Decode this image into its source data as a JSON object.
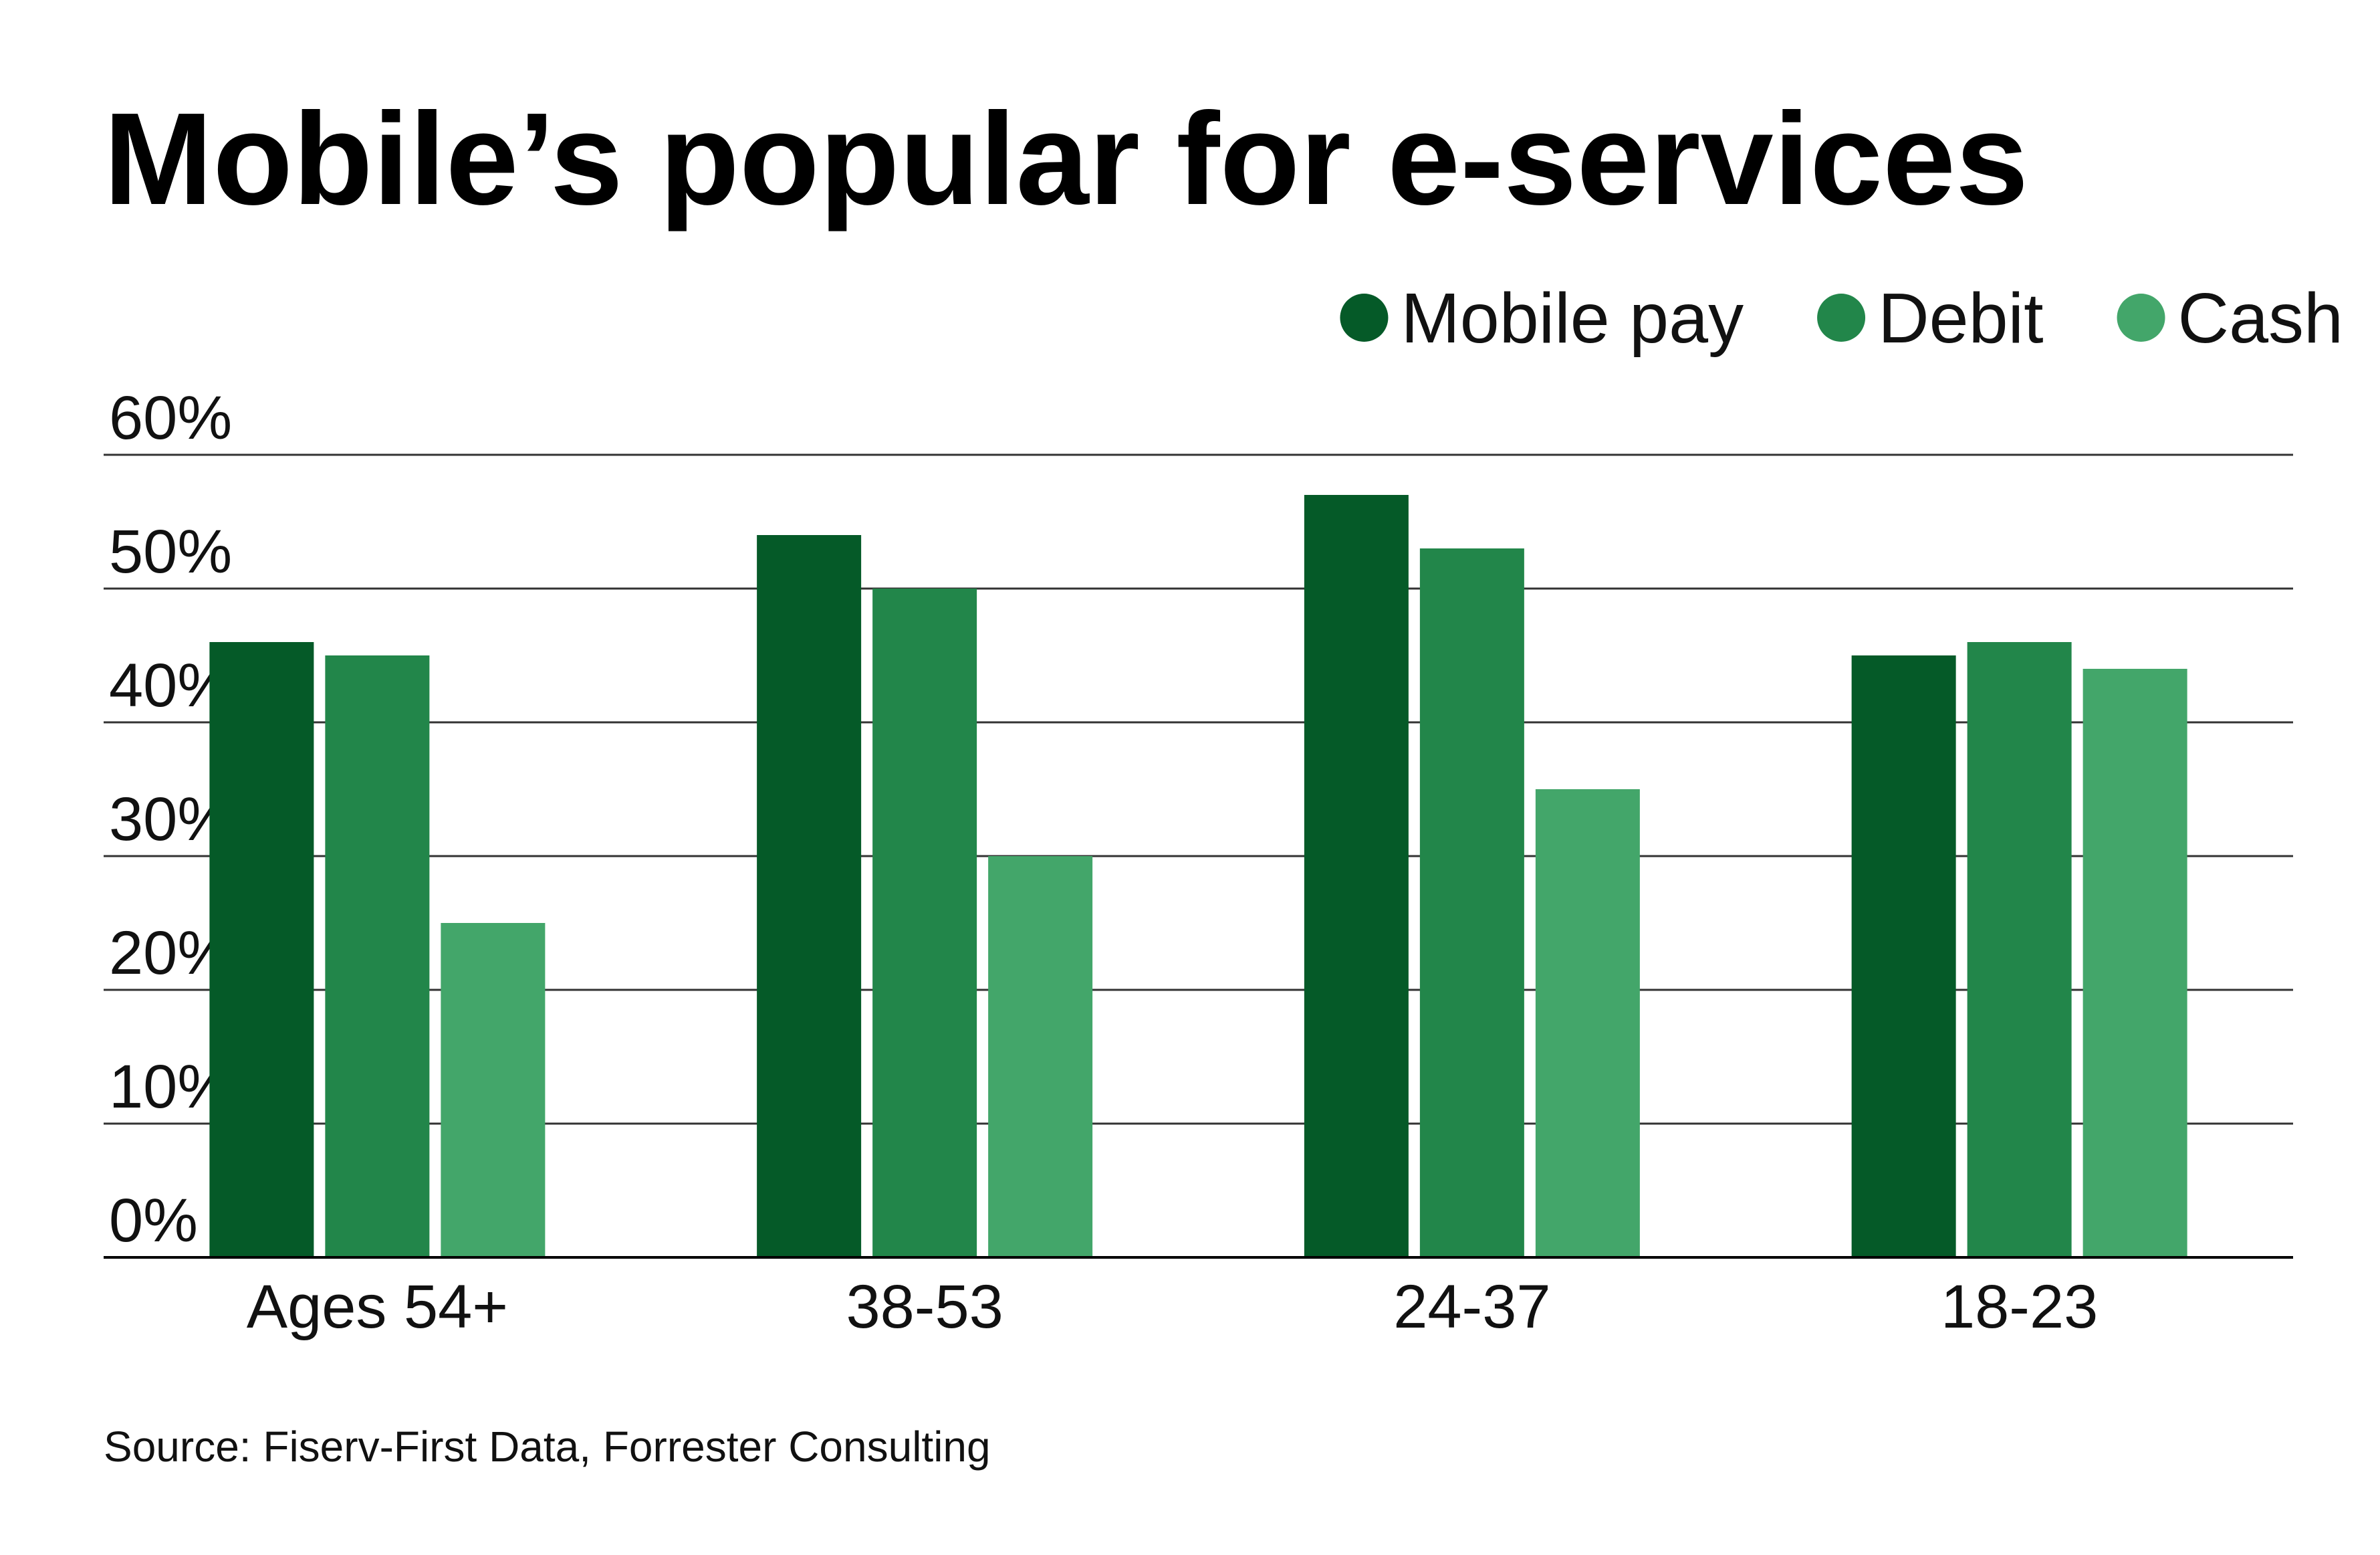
{
  "chart_data": {
    "type": "bar",
    "title": "Mobile’s popular for e-services",
    "categories": [
      "Ages 54+",
      "38-53",
      "24-37",
      "18-23"
    ],
    "series": [
      {
        "name": "Mobile pay",
        "color": "#055a28",
        "values": [
          46,
          54,
          57,
          45
        ]
      },
      {
        "name": "Debit",
        "color": "#22864a",
        "values": [
          45,
          50,
          53,
          46
        ]
      },
      {
        "name": "Cash",
        "color": "#43a66a",
        "values": [
          25,
          30,
          35,
          44
        ]
      }
    ],
    "ylim": [
      0,
      60
    ],
    "yticks": [
      "0%",
      "10%",
      "20%",
      "30%",
      "40%",
      "50%",
      "60%"
    ],
    "grid": true,
    "legend": "top-right",
    "source": "Source: Fiserv-First Data, Forrester Consulting"
  }
}
